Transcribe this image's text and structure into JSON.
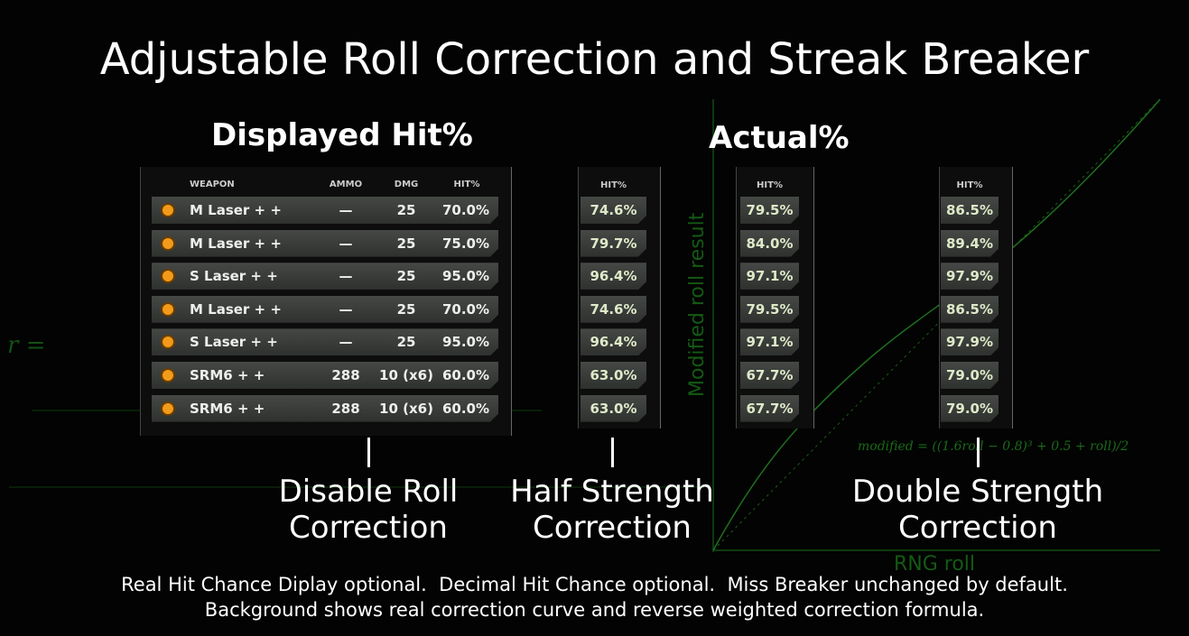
{
  "title": "Adjustable Roll Correction and Streak Breaker",
  "displayed": {
    "heading": "Displayed Hit%",
    "headers": [
      "WEAPON",
      "AMMO",
      "DMG",
      "HIT%"
    ],
    "rows": [
      [
        "M Laser + +",
        "—",
        "25",
        "70.0%"
      ],
      [
        "M Laser + +",
        "—",
        "25",
        "75.0%"
      ],
      [
        "S Laser + +",
        "—",
        "25",
        "95.0%"
      ],
      [
        "M Laser + +",
        "—",
        "25",
        "70.0%"
      ],
      [
        "S Laser + +",
        "—",
        "25",
        "95.0%"
      ],
      [
        "SRM6 + +",
        "288",
        "10 (x6)",
        "60.0%"
      ],
      [
        "SRM6 + +",
        "288",
        "10 (x6)",
        "60.0%"
      ]
    ]
  },
  "half": {
    "header": "HIT%",
    "values": [
      "74.6%",
      "79.7%",
      "96.4%",
      "74.6%",
      "96.4%",
      "63.0%",
      "63.0%"
    ]
  },
  "actual": {
    "heading": "Actual%"
  },
  "actual_a": {
    "header": "HIT%",
    "values": [
      "79.5%",
      "84.0%",
      "97.1%",
      "79.5%",
      "97.1%",
      "67.7%",
      "67.7%"
    ]
  },
  "actual_b": {
    "header": "HIT%",
    "values": [
      "86.5%",
      "89.4%",
      "97.9%",
      "86.5%",
      "97.9%",
      "79.0%",
      "79.0%"
    ]
  },
  "captions": [
    [
      "Disable Roll",
      "Correction"
    ],
    [
      "Half Strength",
      "Correction"
    ],
    [
      "Double Strength",
      "Correction"
    ]
  ],
  "background": {
    "y_label": "Modified roll result",
    "x_label": "RNG roll",
    "formula": "modified = ((1.6roll − 0.8)³ + 0.5 + roll)/2",
    "r": "r ="
  },
  "footer": [
    "Real Hit Chance Diplay optional.  Decimal Hit Chance optional.  Miss Breaker unchanged by default.",
    "Background shows real correction curve and reverse weighted correction formula."
  ]
}
